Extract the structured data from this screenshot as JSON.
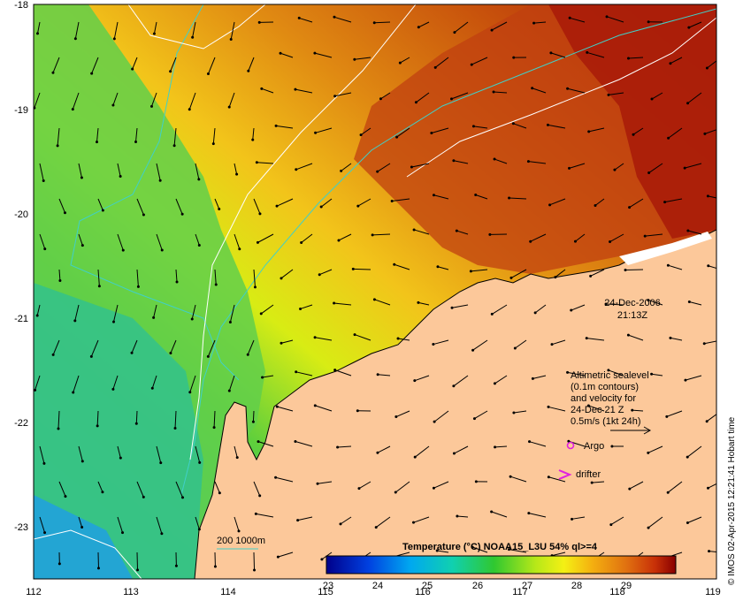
{
  "map": {
    "axes": {
      "lon_ticks": [
        "112",
        "113",
        "114",
        "115",
        "116",
        "117",
        "118",
        "119"
      ],
      "lat_ticks": [
        "-18",
        "-19",
        "-20",
        "-21",
        "-22",
        "-23"
      ]
    },
    "date": "24-Dec-2006",
    "time": "21:13Z",
    "legend": {
      "lines": [
        "Altimetric sealevel",
        "(0.1m contours)",
        "and velocity for",
        "24-Dec 21 Z",
        "0.5m/s (1kt 24h)"
      ],
      "argo_label": "Argo",
      "drifter_label": "drifter",
      "argo_color": "#e020e0",
      "drifter_color": "#e020e0"
    },
    "isobath_label": "200  1000m",
    "isobath_color": "#40d0c8",
    "colorbar": {
      "title": "Temperature (°C) NOAA15_L3U 54% ql>=4",
      "tick_labels": [
        "23",
        "24",
        "25",
        "26",
        "27",
        "28",
        "29"
      ]
    },
    "credit": "© IMOS 02-Apr-2015 12:21:41 Hobart time",
    "colors": {
      "land": "#fcc89a",
      "cloud": "#ffffff",
      "coast_outline": "#000000"
    }
  }
}
